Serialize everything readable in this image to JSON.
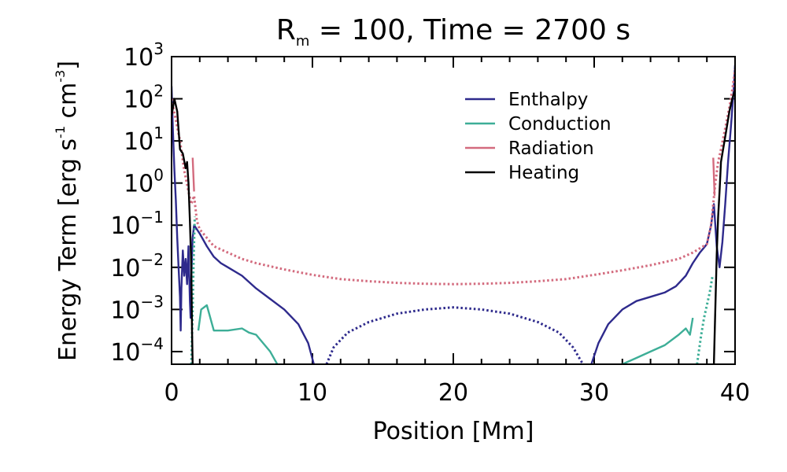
{
  "chart_data": {
    "type": "line",
    "title": "Rₘ = 100, Time = 2700 s",
    "title_parts": {
      "lhs": "R",
      "subscript": "m",
      "rhs": " = 100, Time = 2700 s"
    },
    "xlabel": "Position [Mm]",
    "ylabel_parts": [
      "Energy Term [erg s",
      "-1",
      " cm",
      "-3",
      "]"
    ],
    "ylabel": "Energy Term [erg s⁻¹ cm⁻³]",
    "xlim": [
      0,
      40
    ],
    "ylim_log10": [
      -4.3,
      3
    ],
    "yscale": "log",
    "x_ticks": [
      {
        "value": 0,
        "label": "0"
      },
      {
        "value": 10,
        "label": "10"
      },
      {
        "value": 20,
        "label": "20"
      },
      {
        "value": 30,
        "label": "30"
      },
      {
        "value": 40,
        "label": "40"
      }
    ],
    "y_ticks": [
      {
        "exp": 3,
        "label": "3"
      },
      {
        "exp": 2,
        "label": "2"
      },
      {
        "exp": 1,
        "label": "1"
      },
      {
        "exp": 0,
        "label": "0"
      },
      {
        "exp": -1,
        "label": "−1"
      },
      {
        "exp": -2,
        "label": "−2"
      },
      {
        "exp": -3,
        "label": "−3"
      },
      {
        "exp": -4,
        "label": "−4"
      }
    ],
    "y_tick_base": "10",
    "legend_position": "top-right",
    "series": [
      {
        "name": "Enthalpy",
        "color": "#2e2a8c",
        "segments": [
          {
            "style": "solid",
            "points": [
              [
                0.0,
                2.3
              ],
              [
                0.1,
                1.2
              ],
              [
                0.2,
                0.3
              ],
              [
                0.3,
                -0.4
              ],
              [
                0.4,
                -1.3
              ],
              [
                0.5,
                -2.0
              ],
              [
                0.6,
                -2.7
              ],
              [
                0.65,
                -3.5
              ],
              [
                0.7,
                -2.5
              ],
              [
                0.8,
                -1.6
              ],
              [
                0.9,
                -2.2
              ],
              [
                1.0,
                -1.8
              ],
              [
                1.1,
                -2.4
              ],
              [
                1.2,
                -1.5
              ],
              [
                1.3,
                -2.8
              ],
              [
                1.35,
                -3.2
              ],
              [
                1.4,
                -2.2
              ],
              [
                1.5,
                -1.3
              ],
              [
                1.6,
                -1.0
              ],
              [
                2.0,
                -1.2
              ],
              [
                2.5,
                -1.5
              ],
              [
                3.0,
                -1.75
              ],
              [
                3.5,
                -1.9
              ],
              [
                4.0,
                -2.0
              ],
              [
                5.0,
                -2.2
              ],
              [
                6.0,
                -2.5
              ],
              [
                7.0,
                -2.75
              ],
              [
                8.0,
                -3.0
              ],
              [
                9.0,
                -3.35
              ],
              [
                9.7,
                -3.8
              ],
              [
                10.1,
                -4.3
              ]
            ]
          },
          {
            "style": "dotted",
            "points": [
              [
                11.0,
                -4.3
              ],
              [
                11.5,
                -3.9
              ],
              [
                12.5,
                -3.55
              ],
              [
                14.0,
                -3.3
              ],
              [
                16.0,
                -3.1
              ],
              [
                18.0,
                -3.0
              ],
              [
                20.0,
                -2.95
              ],
              [
                22.0,
                -3.0
              ],
              [
                24.0,
                -3.1
              ],
              [
                26.0,
                -3.3
              ],
              [
                27.5,
                -3.55
              ],
              [
                28.5,
                -3.9
              ],
              [
                29.2,
                -4.3
              ]
            ]
          },
          {
            "style": "solid",
            "points": [
              [
                29.8,
                -4.3
              ],
              [
                30.3,
                -3.8
              ],
              [
                31.0,
                -3.35
              ],
              [
                32.0,
                -3.0
              ],
              [
                33.0,
                -2.8
              ],
              [
                34.0,
                -2.7
              ],
              [
                35.0,
                -2.6
              ],
              [
                35.8,
                -2.45
              ],
              [
                36.5,
                -2.2
              ],
              [
                37.0,
                -1.9
              ],
              [
                37.5,
                -1.65
              ],
              [
                38.0,
                -1.45
              ],
              [
                38.3,
                -1.0
              ],
              [
                38.5,
                -0.5
              ],
              [
                38.7,
                -1.5
              ],
              [
                38.9,
                -2.0
              ],
              [
                39.1,
                -1.4
              ],
              [
                39.3,
                -0.5
              ],
              [
                39.5,
                0.5
              ],
              [
                39.7,
                1.3
              ],
              [
                39.9,
                2.2
              ],
              [
                40.0,
                2.8
              ]
            ]
          }
        ]
      },
      {
        "name": "Conduction",
        "color": "#3dae97",
        "segments": [
          {
            "style": "dotted",
            "points": [
              [
                1.4,
                -4.3
              ],
              [
                1.5,
                -3.0
              ],
              [
                1.55,
                -2.1
              ],
              [
                1.6,
                -1.4
              ],
              [
                1.65,
                -0.8
              ]
            ]
          },
          {
            "style": "solid",
            "points": [
              [
                1.9,
                -3.5
              ],
              [
                2.1,
                -3.0
              ],
              [
                2.5,
                -2.9
              ],
              [
                3.0,
                -3.5
              ],
              [
                3.5,
                -3.5
              ],
              [
                4.0,
                -3.5
              ],
              [
                5.0,
                -3.45
              ],
              [
                5.5,
                -3.55
              ],
              [
                6.0,
                -3.6
              ],
              [
                7.0,
                -4.0
              ],
              [
                7.5,
                -4.3
              ]
            ]
          },
          {
            "style": "solid",
            "points": [
              [
                32.0,
                -4.3
              ],
              [
                33.0,
                -4.15
              ],
              [
                34.0,
                -4.0
              ],
              [
                35.0,
                -3.85
              ],
              [
                36.0,
                -3.6
              ],
              [
                36.5,
                -3.45
              ],
              [
                36.8,
                -3.6
              ],
              [
                37.0,
                -3.2
              ]
            ]
          },
          {
            "style": "dotted",
            "points": [
              [
                37.3,
                -4.3
              ],
              [
                37.6,
                -3.6
              ],
              [
                37.8,
                -3.2
              ],
              [
                38.0,
                -2.9
              ],
              [
                38.2,
                -2.6
              ],
              [
                38.4,
                -2.2
              ]
            ]
          }
        ]
      },
      {
        "name": "Radiation",
        "color": "#d36b7e",
        "segments": [
          {
            "style": "dotted",
            "points": [
              [
                0.0,
                2.0
              ],
              [
                0.3,
                1.5
              ],
              [
                0.6,
                1.0
              ],
              [
                0.9,
                0.3
              ],
              [
                1.2,
                -0.2
              ],
              [
                1.4,
                -0.5
              ],
              [
                1.6,
                -0.3
              ],
              [
                1.8,
                -0.9
              ],
              [
                2.0,
                -1.1
              ],
              [
                2.5,
                -1.3
              ],
              [
                3.0,
                -1.5
              ],
              [
                4.0,
                -1.65
              ],
              [
                5.0,
                -1.8
              ],
              [
                6.0,
                -1.9
              ],
              [
                8.0,
                -2.05
              ],
              [
                10.0,
                -2.18
              ],
              [
                12.0,
                -2.28
              ],
              [
                14.0,
                -2.33
              ],
              [
                16.0,
                -2.37
              ],
              [
                18.0,
                -2.39
              ],
              [
                20.0,
                -2.4
              ],
              [
                22.0,
                -2.39
              ],
              [
                24.0,
                -2.37
              ],
              [
                26.0,
                -2.33
              ],
              [
                28.0,
                -2.28
              ],
              [
                30.0,
                -2.18
              ],
              [
                32.0,
                -2.07
              ],
              [
                34.0,
                -1.95
              ],
              [
                36.0,
                -1.8
              ],
              [
                37.0,
                -1.65
              ],
              [
                38.0,
                -1.45
              ],
              [
                38.3,
                -1.0
              ],
              [
                38.6,
                0.0
              ],
              [
                38.8,
                0.5
              ],
              [
                39.0,
                0.8
              ],
              [
                39.3,
                1.3
              ],
              [
                39.6,
                1.8
              ],
              [
                39.8,
                2.2
              ],
              [
                40.0,
                2.7
              ]
            ]
          },
          {
            "style": "solid",
            "points": [
              [
                1.5,
                0.6
              ],
              [
                1.6,
                -0.2
              ]
            ]
          },
          {
            "style": "solid",
            "points": [
              [
                38.45,
                0.6
              ],
              [
                38.55,
                -0.3
              ]
            ]
          }
        ]
      },
      {
        "name": "Heating",
        "color": "#000000",
        "segments": [
          {
            "style": "solid",
            "points": [
              [
                0.0,
                1.6
              ],
              [
                0.2,
                2.0
              ],
              [
                0.4,
                1.7
              ],
              [
                0.6,
                0.8
              ],
              [
                0.8,
                0.7
              ],
              [
                1.0,
                0.35
              ],
              [
                1.1,
                0.5
              ],
              [
                1.2,
                0.0
              ],
              [
                1.3,
                -0.9
              ],
              [
                1.4,
                -2.0
              ],
              [
                1.45,
                -3.5
              ],
              [
                1.5,
                -4.3
              ]
            ]
          },
          {
            "style": "solid",
            "points": [
              [
                38.5,
                -4.3
              ],
              [
                38.6,
                -3.0
              ],
              [
                38.7,
                -1.7
              ],
              [
                38.8,
                -0.8
              ],
              [
                38.9,
                -0.2
              ],
              [
                39.0,
                0.5
              ],
              [
                39.2,
                0.9
              ],
              [
                39.4,
                1.3
              ],
              [
                39.6,
                1.7
              ],
              [
                39.8,
                2.0
              ],
              [
                40.0,
                2.2
              ]
            ]
          }
        ]
      }
    ]
  }
}
